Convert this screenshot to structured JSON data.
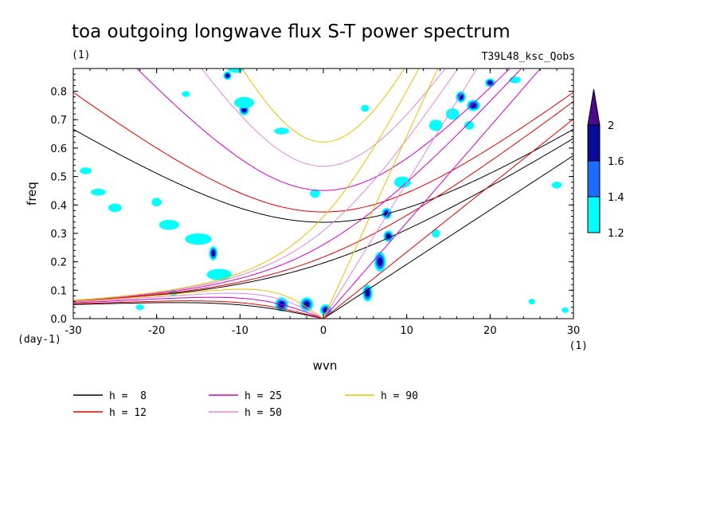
{
  "chart_data": {
    "type": "contour",
    "title": "toa outgoing longwave flux S-T power spectrum",
    "subtitle_left": "(1)",
    "subtitle_right": "T39L48_ksc_Qobs",
    "xlabel": "wvn",
    "ylabel": "freq",
    "x_unit": "(1)",
    "y_unit": "(day-1)",
    "xlim": [
      -30,
      30
    ],
    "ylim": [
      0,
      0.88
    ],
    "x_ticks": [
      -30,
      -20,
      -10,
      0,
      10,
      20,
      30
    ],
    "x_tick_labels": [
      "-30",
      "-20",
      "-10",
      "0",
      "10",
      "20",
      "30"
    ],
    "y_ticks": [
      0,
      0.1,
      0.2,
      0.3,
      0.4,
      0.5,
      0.6,
      0.7,
      0.8
    ],
    "y_tick_labels": [
      "0.0",
      "0.1",
      "0.2",
      "0.3",
      "0.4",
      "0.5",
      "0.6",
      "0.7",
      "0.8"
    ],
    "colorbar": {
      "levels": [
        1.2,
        1.4,
        1.6,
        2
      ],
      "labels": [
        "1.2",
        "1.4",
        "1.6",
        "2"
      ],
      "colors": [
        "#00ffff",
        "#1e6bff",
        "#0a0a9c",
        "#4b0a8c"
      ]
    },
    "dispersion_curves": [
      {
        "label": "h =  8",
        "h": 8,
        "color": "#000000"
      },
      {
        "label": "h = 12",
        "h": 12,
        "color": "#dd0000"
      },
      {
        "label": "h = 25",
        "h": 25,
        "color": "#cc00cc"
      },
      {
        "label": "h = 50",
        "h": 50,
        "color": "#dd88dd"
      },
      {
        "label": "h = 90",
        "h": 90,
        "color": "#e6c200"
      }
    ],
    "power_blobs": [
      {
        "x": -5.0,
        "y": 0.05,
        "rx": 0.8,
        "ry": 0.025,
        "level": 3
      },
      {
        "x": -2.0,
        "y": 0.05,
        "rx": 0.8,
        "ry": 0.025,
        "level": 3
      },
      {
        "x": 0.3,
        "y": 0.03,
        "rx": 0.7,
        "ry": 0.02,
        "level": 3
      },
      {
        "x": 5.3,
        "y": 0.09,
        "rx": 0.6,
        "ry": 0.03,
        "level": 3
      },
      {
        "x": 6.8,
        "y": 0.2,
        "rx": 0.7,
        "ry": 0.035,
        "level": 3
      },
      {
        "x": 7.8,
        "y": 0.29,
        "rx": 0.6,
        "ry": 0.02,
        "level": 3
      },
      {
        "x": 7.6,
        "y": 0.37,
        "rx": 0.6,
        "ry": 0.02,
        "level": 3
      },
      {
        "x": -13.2,
        "y": 0.23,
        "rx": 0.5,
        "ry": 0.025,
        "level": 3
      },
      {
        "x": -9.5,
        "y": 0.735,
        "rx": 0.6,
        "ry": 0.02,
        "level": 3
      },
      {
        "x": -11.5,
        "y": 0.855,
        "rx": 0.5,
        "ry": 0.015,
        "level": 3
      },
      {
        "x": 18.0,
        "y": 0.75,
        "rx": 0.8,
        "ry": 0.02,
        "level": 3
      },
      {
        "x": 20.0,
        "y": 0.83,
        "rx": 0.6,
        "ry": 0.015,
        "level": 3
      },
      {
        "x": 16.5,
        "y": 0.78,
        "rx": 0.6,
        "ry": 0.02,
        "level": 3
      },
      {
        "x": -12.5,
        "y": 0.155,
        "rx": 1.5,
        "ry": 0.02,
        "level": 1
      },
      {
        "x": -15.0,
        "y": 0.28,
        "rx": 1.6,
        "ry": 0.02,
        "level": 1
      },
      {
        "x": -18.5,
        "y": 0.33,
        "rx": 1.2,
        "ry": 0.018,
        "level": 1
      },
      {
        "x": -10.5,
        "y": 0.88,
        "rx": 1.0,
        "ry": 0.015,
        "level": 1
      },
      {
        "x": -9.5,
        "y": 0.76,
        "rx": 1.2,
        "ry": 0.02,
        "level": 1
      },
      {
        "x": -20.0,
        "y": 0.41,
        "rx": 0.6,
        "ry": 0.015,
        "level": 1
      },
      {
        "x": -28.5,
        "y": 0.52,
        "rx": 0.7,
        "ry": 0.012,
        "level": 1
      },
      {
        "x": -27.0,
        "y": 0.445,
        "rx": 0.9,
        "ry": 0.012,
        "level": 1
      },
      {
        "x": -25.0,
        "y": 0.39,
        "rx": 0.8,
        "ry": 0.015,
        "level": 1
      },
      {
        "x": -5.0,
        "y": 0.66,
        "rx": 0.9,
        "ry": 0.012,
        "level": 1
      },
      {
        "x": -1.0,
        "y": 0.44,
        "rx": 0.6,
        "ry": 0.015,
        "level": 1
      },
      {
        "x": 5.0,
        "y": 0.74,
        "rx": 0.5,
        "ry": 0.012,
        "level": 1
      },
      {
        "x": 9.5,
        "y": 0.48,
        "rx": 1.0,
        "ry": 0.02,
        "level": 1
      },
      {
        "x": 13.5,
        "y": 0.68,
        "rx": 0.8,
        "ry": 0.02,
        "level": 1
      },
      {
        "x": 15.5,
        "y": 0.72,
        "rx": 0.8,
        "ry": 0.02,
        "level": 1
      },
      {
        "x": 17.5,
        "y": 0.68,
        "rx": 0.6,
        "ry": 0.015,
        "level": 1
      },
      {
        "x": 23.0,
        "y": 0.84,
        "rx": 0.7,
        "ry": 0.012,
        "level": 1
      },
      {
        "x": 28.0,
        "y": 0.47,
        "rx": 0.6,
        "ry": 0.012,
        "level": 1
      },
      {
        "x": 13.5,
        "y": 0.3,
        "rx": 0.5,
        "ry": 0.015,
        "level": 1
      },
      {
        "x": -22.0,
        "y": 0.04,
        "rx": 0.5,
        "ry": 0.01,
        "level": 1
      },
      {
        "x": -18.0,
        "y": 0.09,
        "rx": 0.5,
        "ry": 0.01,
        "level": 1
      },
      {
        "x": 25.0,
        "y": 0.06,
        "rx": 0.4,
        "ry": 0.01,
        "level": 1
      },
      {
        "x": 29.0,
        "y": 0.03,
        "rx": 0.4,
        "ry": 0.01,
        "level": 1
      },
      {
        "x": -16.5,
        "y": 0.79,
        "rx": 0.5,
        "ry": 0.01,
        "level": 1
      }
    ]
  }
}
